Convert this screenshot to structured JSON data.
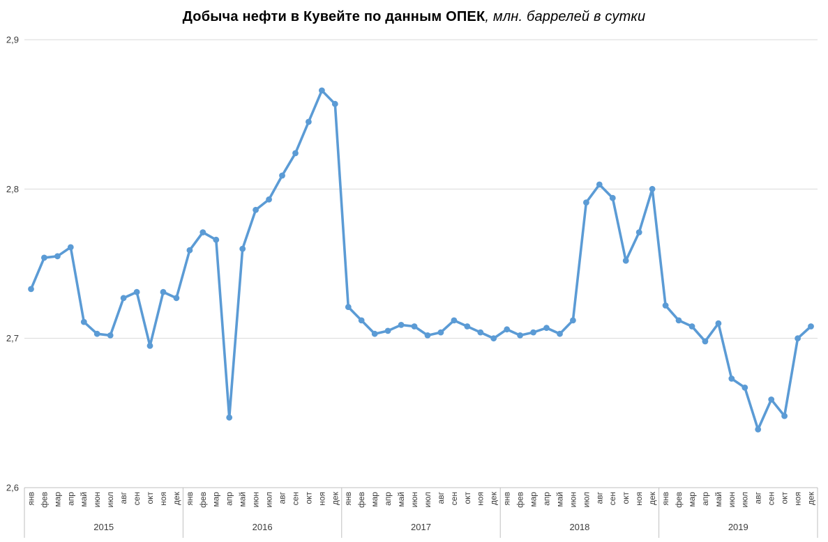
{
  "title": {
    "main": "Добыча нефти в Кувейте по данным ОПЕК",
    "subtitle_italic": ", млн. баррелей в сутки"
  },
  "colors": {
    "line": "#5B9BD5",
    "marker": "#5B9BD5",
    "gridline": "#D9D9D9",
    "axis": "#BFBFBF",
    "axis_text": "#3b3b3b",
    "title_text": "#000000"
  },
  "chart_data": {
    "type": "line",
    "title": "Добыча нефти в Кувейте по данным ОПЕК",
    "subtitle": "млн. баррелей в сутки",
    "xlabel": "",
    "ylabel": "",
    "ylim": [
      2.6,
      2.9
    ],
    "grid": true,
    "legend": "none",
    "marker": "circle",
    "line_color": "#5B9BD5",
    "y_ticks": [
      {
        "value": 2.9,
        "label": "2,9"
      },
      {
        "value": 2.8,
        "label": "2,8"
      },
      {
        "value": 2.7,
        "label": "2,7"
      },
      {
        "value": 2.6,
        "label": "2,6"
      }
    ],
    "month_labels": [
      "янв",
      "фев",
      "мар",
      "апр",
      "май",
      "июн",
      "июл",
      "авг",
      "сен",
      "окт",
      "ноя",
      "дек"
    ],
    "series": [
      {
        "name": "Добыча нефти в Кувейте, млн. баррелей в сутки",
        "by_year": [
          {
            "year": "2015",
            "values": [
              2.733,
              2.754,
              2.755,
              2.761,
              2.711,
              2.703,
              2.702,
              2.727,
              2.731,
              2.695,
              2.731,
              2.727
            ]
          },
          {
            "year": "2016",
            "values": [
              2.759,
              2.771,
              2.766,
              2.647,
              2.76,
              2.786,
              2.793,
              2.809,
              2.824,
              2.845,
              2.866,
              2.857
            ]
          },
          {
            "year": "2017",
            "values": [
              2.721,
              2.712,
              2.703,
              2.705,
              2.709,
              2.708,
              2.702,
              2.704,
              2.712,
              2.708,
              2.704,
              2.7
            ]
          },
          {
            "year": "2018",
            "values": [
              2.706,
              2.702,
              2.704,
              2.707,
              2.703,
              2.712,
              2.791,
              2.803,
              2.794,
              2.752,
              2.771,
              2.8
            ]
          },
          {
            "year": "2019",
            "values": [
              2.722,
              2.712,
              2.708,
              2.698,
              2.71,
              2.673,
              2.667,
              2.639,
              2.659,
              2.648,
              2.7,
              2.708
            ]
          }
        ]
      }
    ]
  }
}
